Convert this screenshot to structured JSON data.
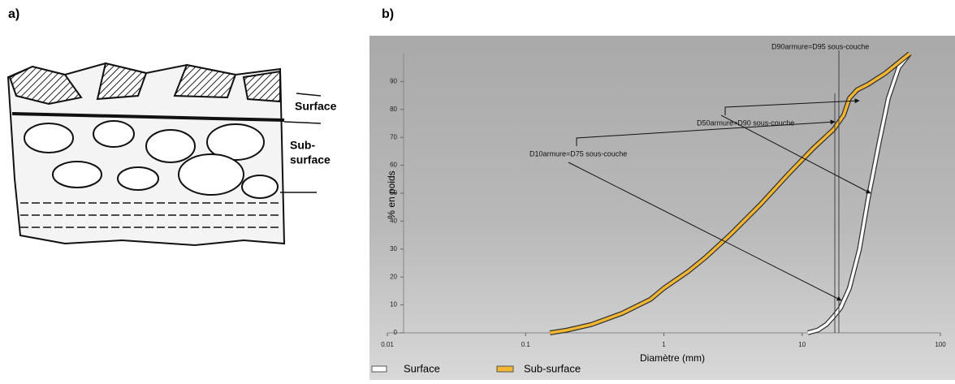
{
  "panel_labels": [
    "a)",
    "b)"
  ],
  "diagram": {
    "surface_label": "Surface",
    "subsurface_label": [
      "Sub-",
      "surface"
    ]
  },
  "chart_data": {
    "type": "line",
    "xlabel": "Diamètre (mm)",
    "ylabel": "% en poids",
    "xscale": "log",
    "xlim": [
      0.01,
      100
    ],
    "xticks": [
      0.01,
      0.1,
      1,
      10,
      100
    ],
    "ylim": [
      0,
      100
    ],
    "yticks": [
      0,
      10,
      20,
      30,
      40,
      50,
      60,
      70,
      80,
      90
    ],
    "series": [
      {
        "name": "Surface",
        "color": "#ffffff",
        "x": [
          11,
          13,
          15,
          17,
          19,
          22,
          26,
          30,
          36,
          42,
          50,
          60
        ],
        "values": [
          0,
          1,
          3,
          6,
          9,
          16,
          30,
          48,
          68,
          84,
          95,
          100
        ]
      },
      {
        "name": "Sub-surface",
        "color": "#f2b632",
        "x": [
          0.15,
          0.2,
          0.3,
          0.5,
          0.8,
          1,
          1.5,
          2,
          3,
          5,
          8,
          12,
          17,
          20,
          22,
          25,
          30,
          40,
          60
        ],
        "values": [
          0,
          1,
          3,
          7,
          12,
          16,
          22,
          27,
          35,
          46,
          57,
          66,
          73,
          78,
          84,
          87,
          89,
          93,
          100
        ]
      }
    ],
    "annotations": [
      "D90armure=D95 sous-couche",
      "D50armure=D90 sous-couche",
      "D10armure=D75 sous-couche"
    ]
  }
}
